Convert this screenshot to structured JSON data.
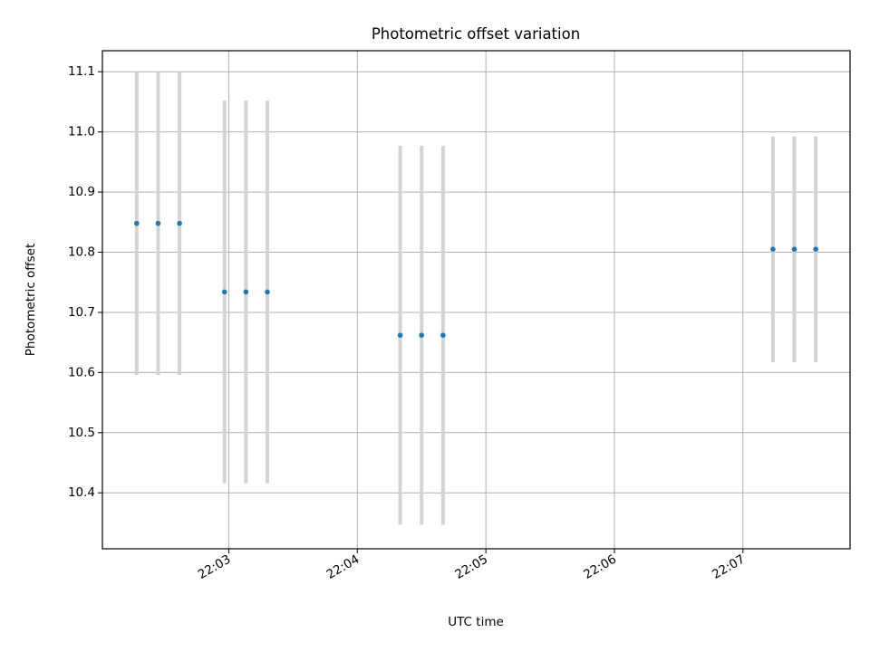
{
  "chart_data": {
    "type": "scatter",
    "title": "Photometric offset variation",
    "xlabel": "UTC time",
    "ylabel": "Photometric offset",
    "x_axis": {
      "kind": "time",
      "range": [
        "22:02:01",
        "22:07:50"
      ],
      "ticks": [
        "22:03",
        "22:04",
        "22:05",
        "22:06",
        "22:07"
      ]
    },
    "y_axis": {
      "range": [
        10.307,
        11.135
      ],
      "ticks": [
        "10.4",
        "10.5",
        "10.6",
        "10.7",
        "10.8",
        "10.9",
        "11.0",
        "11.1"
      ]
    },
    "grid": true,
    "errorbar_color": "#d3d3d3",
    "point_color": "#1f77b4",
    "points": [
      {
        "time": "22:02:17",
        "y": 10.848,
        "err": 0.252
      },
      {
        "time": "22:02:27",
        "y": 10.848,
        "err": 0.252
      },
      {
        "time": "22:02:37",
        "y": 10.848,
        "err": 0.252
      },
      {
        "time": "22:02:58",
        "y": 10.734,
        "err": 0.318
      },
      {
        "time": "22:03:08",
        "y": 10.734,
        "err": 0.318
      },
      {
        "time": "22:03:18",
        "y": 10.734,
        "err": 0.318
      },
      {
        "time": "22:04:20",
        "y": 10.662,
        "err": 0.315
      },
      {
        "time": "22:04:30",
        "y": 10.662,
        "err": 0.315
      },
      {
        "time": "22:04:40",
        "y": 10.662,
        "err": 0.315
      },
      {
        "time": "22:07:14",
        "y": 10.805,
        "err": 0.188
      },
      {
        "time": "22:07:24",
        "y": 10.805,
        "err": 0.188
      },
      {
        "time": "22:07:34",
        "y": 10.805,
        "err": 0.188
      }
    ]
  }
}
